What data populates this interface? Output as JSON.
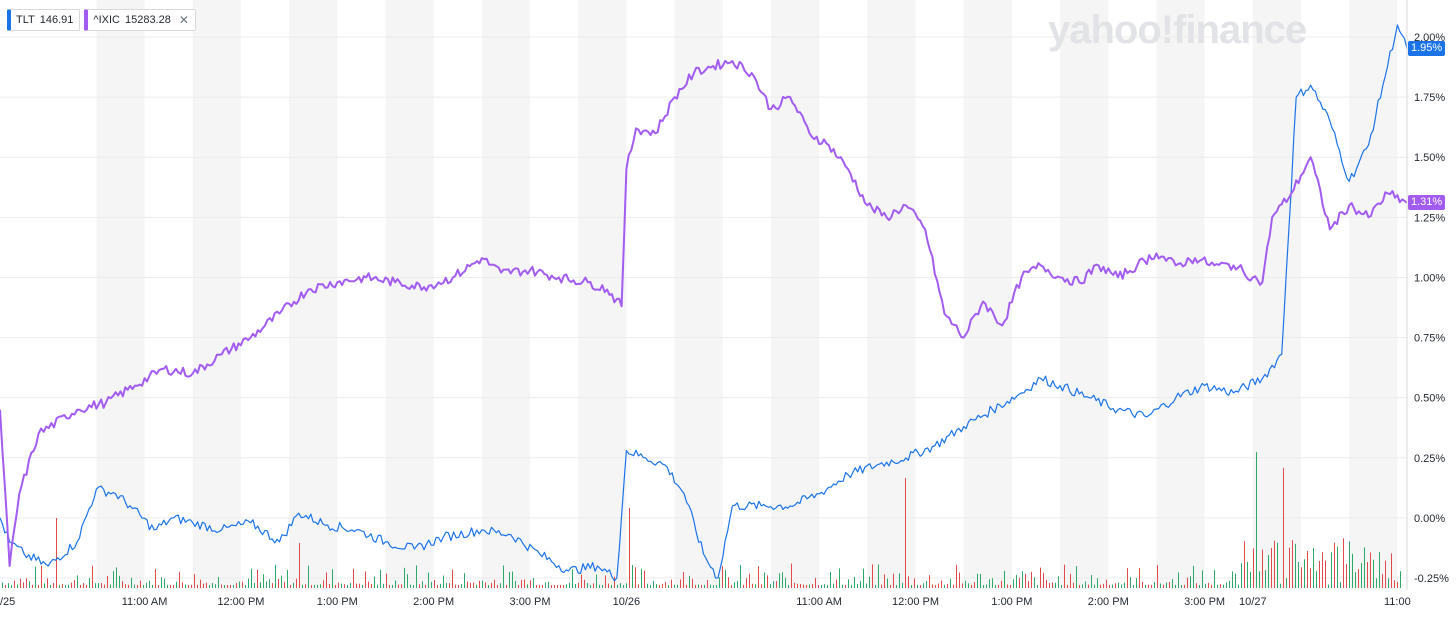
{
  "logo_text": "yahoo!finance",
  "legend": [
    {
      "symbol": "TLT",
      "value": "146.91",
      "color": "#1a73e8"
    },
    {
      "symbol": "^IXIC",
      "value": "15283.28",
      "color": "#a35cf0"
    }
  ],
  "badges": [
    {
      "text": "1.95%",
      "color": "#1a73e8",
      "value": 1.95
    },
    {
      "text": "1.31%",
      "color": "#a35cf0",
      "value": 1.31
    }
  ],
  "colors": {
    "up_volume": "#2ea86a",
    "down_volume": "#e04a4a",
    "band": "#f5f5f5",
    "grid": "#ececec"
  },
  "chart_data": {
    "type": "line",
    "yaxis": {
      "side": "right",
      "unit": "%",
      "ylim": [
        -0.25,
        2.0
      ],
      "ticks": [
        "2.00%",
        "1.75%",
        "1.50%",
        "1.25%",
        "1.00%",
        "0.75%",
        "0.50%",
        "0.25%",
        "0.00%",
        "-0.25%"
      ],
      "tick_values": [
        2.0,
        1.75,
        1.5,
        1.25,
        1.0,
        0.75,
        0.5,
        0.25,
        0.0,
        -0.25
      ]
    },
    "xaxis": {
      "ticks": [
        "/25",
        "11:00 AM",
        "12:00 PM",
        "1:00 PM",
        "2:00 PM",
        "3:00 PM",
        "10/26",
        "11:00 AM",
        "12:00 PM",
        "1:00 PM",
        "2:00 PM",
        "3:00 PM",
        "10/27",
        "11:00"
      ],
      "tick_times": [
        0,
        1.5,
        2.5,
        3.5,
        4.5,
        5.5,
        6.5,
        8.5,
        9.5,
        10.5,
        11.5,
        12.5,
        13.0,
        14.5
      ],
      "xlim": [
        0,
        14.6
      ]
    },
    "time_unit": "trading hours since 10/25 9:30 AM",
    "series": [
      {
        "name": "TLT",
        "color": "#1a73e8",
        "points": [
          [
            0,
            0.0
          ],
          [
            0.1,
            -0.1
          ],
          [
            0.25,
            -0.15
          ],
          [
            0.5,
            -0.2
          ],
          [
            0.8,
            -0.1
          ],
          [
            1.0,
            0.12
          ],
          [
            1.2,
            0.1
          ],
          [
            1.35,
            0.05
          ],
          [
            1.6,
            -0.05
          ],
          [
            1.8,
            0.0
          ],
          [
            2.0,
            -0.02
          ],
          [
            2.3,
            -0.05
          ],
          [
            2.6,
            -0.02
          ],
          [
            2.9,
            -0.1
          ],
          [
            3.1,
            0.02
          ],
          [
            3.4,
            -0.03
          ],
          [
            3.7,
            -0.05
          ],
          [
            4.0,
            -0.1
          ],
          [
            4.3,
            -0.13
          ],
          [
            4.6,
            -0.08
          ],
          [
            5.0,
            -0.05
          ],
          [
            5.3,
            -0.07
          ],
          [
            5.6,
            -0.15
          ],
          [
            5.9,
            -0.22
          ],
          [
            6.2,
            -0.2
          ],
          [
            6.4,
            -0.25
          ],
          [
            6.5,
            0.28
          ],
          [
            6.7,
            0.25
          ],
          [
            6.9,
            0.22
          ],
          [
            7.1,
            0.1
          ],
          [
            7.3,
            -0.15
          ],
          [
            7.45,
            -0.25
          ],
          [
            7.6,
            0.05
          ],
          [
            7.9,
            0.05
          ],
          [
            8.2,
            0.05
          ],
          [
            8.5,
            0.1
          ],
          [
            8.8,
            0.18
          ],
          [
            9.1,
            0.22
          ],
          [
            9.4,
            0.25
          ],
          [
            9.7,
            0.3
          ],
          [
            10.0,
            0.38
          ],
          [
            10.3,
            0.45
          ],
          [
            10.6,
            0.52
          ],
          [
            10.8,
            0.58
          ],
          [
            11.0,
            0.55
          ],
          [
            11.3,
            0.5
          ],
          [
            11.6,
            0.45
          ],
          [
            11.9,
            0.42
          ],
          [
            12.2,
            0.5
          ],
          [
            12.5,
            0.55
          ],
          [
            12.8,
            0.52
          ],
          [
            13.1,
            0.58
          ],
          [
            13.3,
            0.68
          ],
          [
            13.45,
            1.75
          ],
          [
            13.6,
            1.8
          ],
          [
            13.8,
            1.65
          ],
          [
            14.0,
            1.4
          ],
          [
            14.2,
            1.55
          ],
          [
            14.35,
            1.8
          ],
          [
            14.5,
            2.05
          ],
          [
            14.6,
            1.95
          ]
        ]
      },
      {
        "name": "^IXIC",
        "color": "#a35cf0",
        "points": [
          [
            0,
            0.45
          ],
          [
            0.1,
            -0.2
          ],
          [
            0.2,
            0.1
          ],
          [
            0.4,
            0.35
          ],
          [
            0.8,
            0.45
          ],
          [
            1.1,
            0.48
          ],
          [
            1.4,
            0.55
          ],
          [
            1.7,
            0.62
          ],
          [
            2.0,
            0.6
          ],
          [
            2.3,
            0.68
          ],
          [
            2.6,
            0.75
          ],
          [
            2.9,
            0.85
          ],
          [
            3.2,
            0.95
          ],
          [
            3.5,
            0.98
          ],
          [
            3.8,
            1.0
          ],
          [
            4.1,
            0.98
          ],
          [
            4.4,
            0.96
          ],
          [
            4.7,
            1.0
          ],
          [
            5.0,
            1.08
          ],
          [
            5.2,
            1.02
          ],
          [
            5.5,
            1.03
          ],
          [
            5.8,
            1.0
          ],
          [
            6.1,
            0.98
          ],
          [
            6.3,
            0.95
          ],
          [
            6.45,
            0.88
          ],
          [
            6.5,
            1.45
          ],
          [
            6.6,
            1.62
          ],
          [
            6.8,
            1.6
          ],
          [
            7.0,
            1.75
          ],
          [
            7.2,
            1.85
          ],
          [
            7.4,
            1.88
          ],
          [
            7.6,
            1.9
          ],
          [
            7.8,
            1.85
          ],
          [
            8.0,
            1.7
          ],
          [
            8.2,
            1.75
          ],
          [
            8.4,
            1.6
          ],
          [
            8.6,
            1.55
          ],
          [
            8.8,
            1.45
          ],
          [
            9.0,
            1.3
          ],
          [
            9.2,
            1.25
          ],
          [
            9.4,
            1.3
          ],
          [
            9.6,
            1.2
          ],
          [
            9.8,
            0.85
          ],
          [
            10.0,
            0.75
          ],
          [
            10.2,
            0.9
          ],
          [
            10.4,
            0.8
          ],
          [
            10.6,
            1.0
          ],
          [
            10.8,
            1.05
          ],
          [
            11.0,
            1.0
          ],
          [
            11.2,
            0.98
          ],
          [
            11.4,
            1.05
          ],
          [
            11.6,
            1.0
          ],
          [
            11.8,
            1.05
          ],
          [
            12.0,
            1.1
          ],
          [
            12.2,
            1.05
          ],
          [
            12.4,
            1.08
          ],
          [
            12.6,
            1.05
          ],
          [
            12.8,
            1.05
          ],
          [
            13.0,
            1.0
          ],
          [
            13.1,
            0.98
          ],
          [
            13.2,
            1.25
          ],
          [
            13.4,
            1.35
          ],
          [
            13.6,
            1.5
          ],
          [
            13.8,
            1.2
          ],
          [
            14.0,
            1.3
          ],
          [
            14.2,
            1.25
          ],
          [
            14.4,
            1.35
          ],
          [
            14.6,
            1.31
          ]
        ]
      }
    ]
  }
}
